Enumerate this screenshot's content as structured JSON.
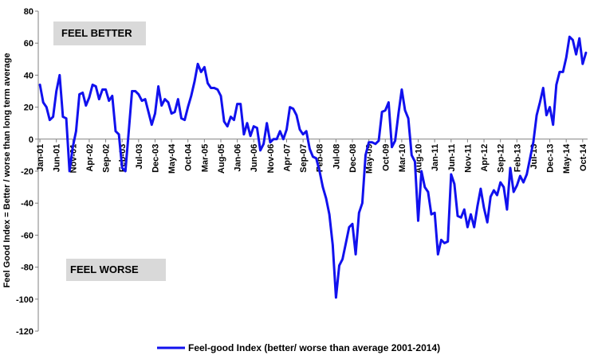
{
  "chart_data": {
    "type": "line",
    "title": "",
    "xlabel": "",
    "ylabel": "Feel Good Index = Better / worse than long term average",
    "ylim": [
      -120,
      80
    ],
    "yticks": [
      -120,
      -100,
      -80,
      -60,
      -40,
      -20,
      0,
      20,
      40,
      60,
      80
    ],
    "grid": false,
    "legend_position": "bottom",
    "x_tick_labels": [
      "Jan-01",
      "Jun-01",
      "Nov-01",
      "Apr-02",
      "Sep-02",
      "Feb-03",
      "Jul-03",
      "Dec-03",
      "May-04",
      "Oct-04",
      "Mar-05",
      "Aug-05",
      "Jan-06",
      "Jun-06",
      "Nov-06",
      "Apr-07",
      "Sep-07",
      "Feb-08",
      "Jul-08",
      "Dec-08",
      "May-09",
      "Oct-09",
      "Mar-10",
      "Aug-10",
      "Jan-11",
      "Jun-11",
      "Nov-11",
      "Apr-12",
      "Sep-12",
      "Feb-13",
      "Jul-13",
      "Dec-13",
      "May-14",
      "Oct-14"
    ],
    "annotations": [
      {
        "text": "FEEL BETTER"
      },
      {
        "text": "FEEL WORSE"
      }
    ],
    "series": [
      {
        "name": "Feel-good Index (better/ worse than average 2001-2014)",
        "color": "#1111ee",
        "values": [
          34,
          23,
          20,
          12,
          14,
          30,
          40,
          14,
          13,
          -20,
          -5,
          5,
          28,
          29,
          21,
          26,
          34,
          33,
          25,
          31,
          31,
          24,
          27,
          5,
          3,
          -18,
          -20,
          5,
          30,
          30,
          28,
          24,
          25,
          17,
          9,
          16,
          33,
          21,
          25,
          23,
          16,
          17,
          25,
          13,
          12,
          20,
          27,
          36,
          47,
          42,
          45,
          35,
          32,
          32,
          31,
          27,
          11,
          8,
          14,
          12,
          22,
          22,
          3,
          10,
          2,
          8,
          7,
          -7,
          -3,
          10,
          -2,
          0,
          0,
          5,
          0,
          6,
          20,
          19,
          15,
          6,
          3,
          5,
          -6,
          -11,
          -12,
          -20,
          -30,
          -37,
          -47,
          -66,
          -99,
          -79,
          -75,
          -65,
          -55,
          -53,
          -72,
          -46,
          -40,
          -10,
          -2,
          -2,
          -3,
          -1,
          17,
          18,
          23,
          -5,
          -1,
          16,
          31,
          18,
          13,
          -10,
          -14,
          -51,
          -20,
          -30,
          -33,
          -47,
          -46,
          -72,
          -63,
          -65,
          -64,
          -22,
          -28,
          -48,
          -49,
          -44,
          -55,
          -47,
          -55,
          -42,
          -31,
          -43,
          -52,
          -36,
          -32,
          -35,
          -27,
          -30,
          -44,
          -18,
          -33,
          -29,
          -23,
          -27,
          -22,
          -12,
          -2,
          15,
          23,
          32,
          15,
          20,
          9,
          34,
          42,
          42,
          51,
          64,
          62,
          53,
          63,
          47,
          54
        ]
      }
    ]
  }
}
